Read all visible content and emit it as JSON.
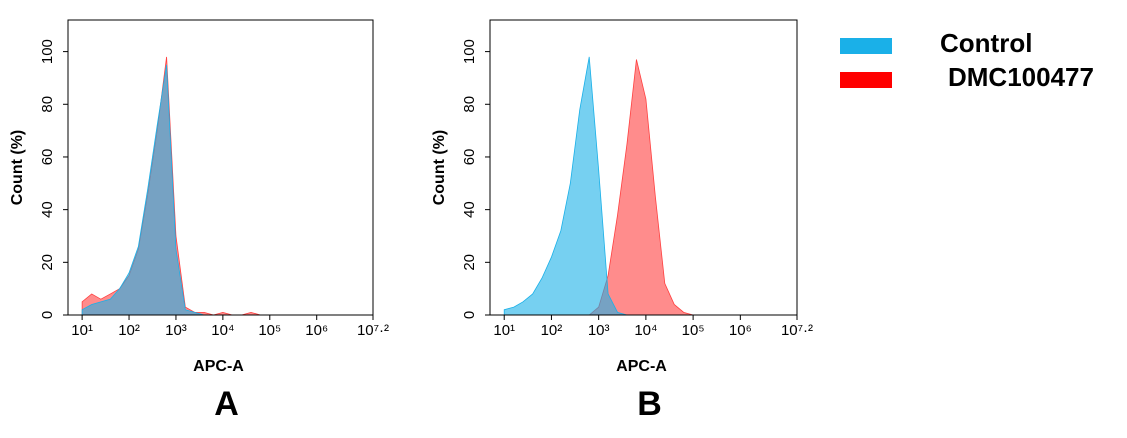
{
  "chart_data": [
    {
      "type": "area",
      "panel": "A",
      "xlabel": "APC-A",
      "ylabel": "Count  (%)",
      "xscale": "log",
      "x": [
        10,
        16,
        25,
        40,
        63,
        100,
        158,
        251,
        398,
        631,
        1000,
        1585,
        2512,
        3981,
        6310,
        10000,
        15849,
        25119,
        39811,
        63096,
        100000
      ],
      "series": [
        {
          "name": "DMC100477",
          "color": "#ff4040",
          "values": [
            5,
            8,
            6,
            8,
            10,
            15,
            25,
            46,
            70,
            98,
            30,
            3,
            1,
            1,
            0,
            1,
            0,
            0,
            1,
            0,
            0
          ]
        },
        {
          "name": "Control",
          "color": "#1ab0e8",
          "values": [
            2,
            4,
            5,
            6,
            10,
            16,
            26,
            48,
            72,
            95,
            25,
            2,
            1,
            0,
            0,
            0,
            0,
            0,
            0,
            0,
            0
          ]
        }
      ],
      "xlim": [
        5,
        15848932
      ],
      "ylim": [
        0,
        112
      ],
      "xticks": [
        {
          "value": 10,
          "label": "10¹"
        },
        {
          "value": 100,
          "label": "10²"
        },
        {
          "value": 1000,
          "label": "10³"
        },
        {
          "value": 10000,
          "label": "10⁴"
        },
        {
          "value": 100000,
          "label": "10⁵"
        },
        {
          "value": 1000000,
          "label": "10⁶"
        },
        {
          "value": 15848932,
          "label": "10⁷·²"
        }
      ],
      "yticks": [
        0,
        20,
        40,
        60,
        80,
        100
      ]
    },
    {
      "type": "area",
      "panel": "B",
      "xlabel": "APC-A",
      "ylabel": "Count  (%)",
      "xscale": "log",
      "x": [
        10,
        16,
        25,
        40,
        63,
        100,
        158,
        251,
        398,
        631,
        1000,
        1585,
        2512,
        3981,
        6310,
        10000,
        15849,
        25119,
        39811,
        63096,
        100000
      ],
      "series": [
        {
          "name": "DMC100477",
          "color": "#ff4040",
          "values": [
            0,
            0,
            0,
            0,
            0,
            0,
            0,
            0,
            0,
            0,
            3,
            15,
            38,
            65,
            97,
            82,
            45,
            12,
            4,
            1,
            0
          ]
        },
        {
          "name": "Control",
          "color": "#1ab0e8",
          "values": [
            2,
            3,
            5,
            8,
            14,
            22,
            32,
            50,
            78,
            98,
            55,
            8,
            1,
            0,
            0,
            0,
            0,
            0,
            0,
            0,
            0
          ]
        }
      ],
      "xlim": [
        5,
        15848932
      ],
      "ylim": [
        0,
        112
      ],
      "xticks": [
        {
          "value": 10,
          "label": "10¹"
        },
        {
          "value": 100,
          "label": "10²"
        },
        {
          "value": 1000,
          "label": "10³"
        },
        {
          "value": 10000,
          "label": "10⁴"
        },
        {
          "value": 100000,
          "label": "10⁵"
        },
        {
          "value": 1000000,
          "label": "10⁶"
        },
        {
          "value": 15848932,
          "label": "10⁷·²"
        }
      ],
      "yticks": [
        0,
        20,
        40,
        60,
        80,
        100
      ]
    }
  ]
}
